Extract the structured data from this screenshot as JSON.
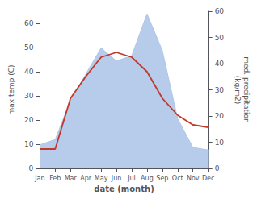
{
  "chart_data": {
    "type": "line",
    "categories": [
      "Jan",
      "Feb",
      "Mar",
      "Apr",
      "May",
      "Jun",
      "Jul",
      "Aug",
      "Sep",
      "Oct",
      "Nov",
      "Dec"
    ],
    "xlabel": "date (month)",
    "ylabel": "max temp (C)",
    "y2label": "med. precipitation\n(kg/m2)",
    "ylim": [
      0,
      65
    ],
    "yticks": [
      0,
      10,
      20,
      30,
      40,
      50,
      60
    ],
    "y2lim": [
      0,
      60
    ],
    "y2ticks": [
      0,
      10,
      20,
      30,
      40,
      50,
      60
    ],
    "grid": false,
    "series": [
      {
        "type": "area",
        "axis": "y2",
        "color": "#aec6e8",
        "values": [
          9,
          11,
          26,
          36,
          46,
          41,
          43,
          59,
          45,
          19,
          8,
          7
        ]
      },
      {
        "type": "line",
        "color": "#c0392b",
        "values": [
          8,
          8,
          29,
          38,
          46,
          48,
          46,
          40,
          29,
          22,
          18,
          17
        ]
      }
    ]
  }
}
